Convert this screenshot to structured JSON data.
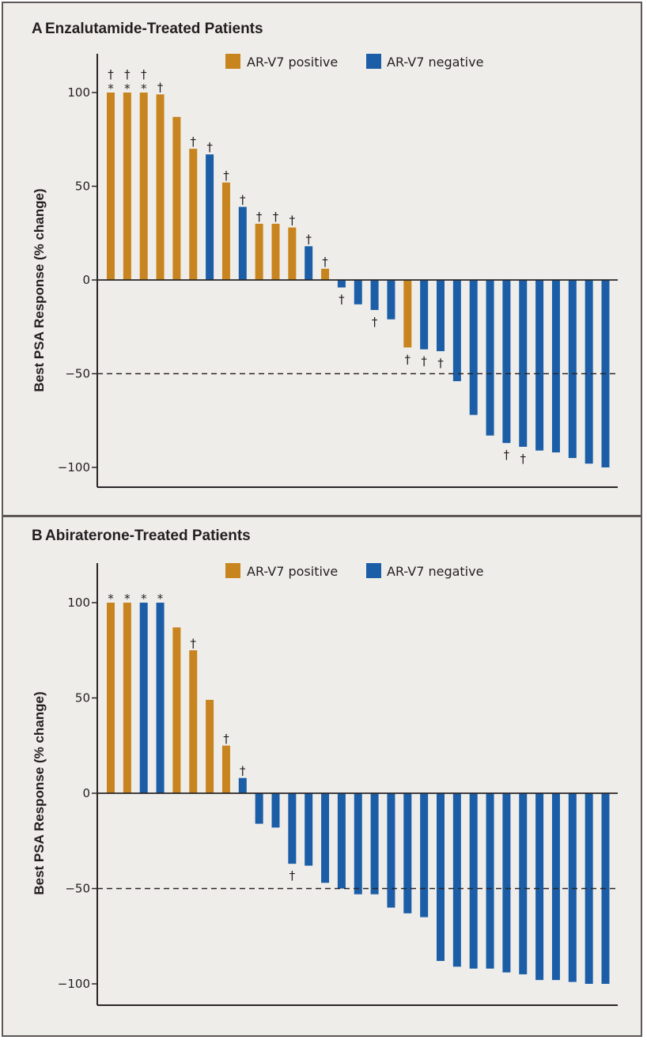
{
  "colors": {
    "positive": "#c8841f",
    "negative": "#1b5ea7",
    "axis": "#2a2627",
    "background": "#efedea"
  },
  "chart_data": [
    {
      "type": "bar",
      "panel_letter": "A",
      "title": "Enzalutamide-Treated Patients",
      "xlabel": "",
      "ylabel": "Best PSA Response (% change)",
      "ylim": [
        -110,
        120
      ],
      "yticks": [
        100,
        50,
        0,
        -50,
        -100
      ],
      "ytick_labels": [
        "100",
        "50",
        "0",
        "−50",
        "−100"
      ],
      "reference_line": {
        "value": -50,
        "style": "dashed"
      },
      "legend": {
        "placement": "top-center",
        "entries": [
          {
            "label": "AR-V7 positive",
            "status": "positive"
          },
          {
            "label": "AR-V7 negative",
            "status": "negative"
          }
        ]
      },
      "grid": false,
      "bars": [
        {
          "value": 100,
          "status": "positive",
          "marks": [
            "*",
            "†"
          ]
        },
        {
          "value": 100,
          "status": "positive",
          "marks": [
            "*",
            "†"
          ]
        },
        {
          "value": 100,
          "status": "positive",
          "marks": [
            "*",
            "†"
          ]
        },
        {
          "value": 99,
          "status": "positive",
          "marks": [
            "†"
          ]
        },
        {
          "value": 87,
          "status": "positive",
          "marks": []
        },
        {
          "value": 70,
          "status": "positive",
          "marks": [
            "†"
          ]
        },
        {
          "value": 67,
          "status": "negative",
          "marks": [
            "†"
          ]
        },
        {
          "value": 52,
          "status": "positive",
          "marks": [
            "†"
          ]
        },
        {
          "value": 39,
          "status": "negative",
          "marks": [
            "†"
          ]
        },
        {
          "value": 30,
          "status": "positive",
          "marks": [
            "†"
          ]
        },
        {
          "value": 30,
          "status": "positive",
          "marks": [
            "†"
          ]
        },
        {
          "value": 28,
          "status": "positive",
          "marks": [
            "†"
          ]
        },
        {
          "value": 18,
          "status": "negative",
          "marks": [
            "†"
          ]
        },
        {
          "value": 6,
          "status": "positive",
          "marks": [
            "†"
          ]
        },
        {
          "value": -4,
          "status": "negative",
          "marks": [
            "†"
          ]
        },
        {
          "value": -13,
          "status": "negative",
          "marks": []
        },
        {
          "value": -16,
          "status": "negative",
          "marks": [
            "†"
          ]
        },
        {
          "value": -21,
          "status": "negative",
          "marks": []
        },
        {
          "value": -36,
          "status": "positive",
          "marks": [
            "†"
          ]
        },
        {
          "value": -37,
          "status": "negative",
          "marks": [
            "†"
          ]
        },
        {
          "value": -38,
          "status": "negative",
          "marks": [
            "†"
          ]
        },
        {
          "value": -54,
          "status": "negative",
          "marks": []
        },
        {
          "value": -72,
          "status": "negative",
          "marks": []
        },
        {
          "value": -83,
          "status": "negative",
          "marks": []
        },
        {
          "value": -87,
          "status": "negative",
          "marks": [
            "†"
          ]
        },
        {
          "value": -89,
          "status": "negative",
          "marks": [
            "†"
          ]
        },
        {
          "value": -91,
          "status": "negative",
          "marks": []
        },
        {
          "value": -92,
          "status": "negative",
          "marks": []
        },
        {
          "value": -95,
          "status": "negative",
          "marks": []
        },
        {
          "value": -98,
          "status": "negative",
          "marks": []
        },
        {
          "value": -100,
          "status": "negative",
          "marks": []
        }
      ]
    },
    {
      "type": "bar",
      "panel_letter": "B",
      "title": "Abiraterone-Treated Patients",
      "xlabel": "",
      "ylabel": "Best PSA Response (% change)",
      "ylim": [
        -113,
        120
      ],
      "yticks": [
        100,
        50,
        0,
        -50,
        -100
      ],
      "ytick_labels": [
        "100",
        "50",
        "0",
        "−50",
        "−100"
      ],
      "reference_line": {
        "value": -50,
        "style": "dashed"
      },
      "legend": {
        "placement": "top-center",
        "entries": [
          {
            "label": "AR-V7 positive",
            "status": "positive"
          },
          {
            "label": "AR-V7 negative",
            "status": "negative"
          }
        ]
      },
      "grid": false,
      "bars": [
        {
          "value": 100,
          "status": "positive",
          "marks": [
            "*"
          ]
        },
        {
          "value": 100,
          "status": "positive",
          "marks": [
            "*"
          ]
        },
        {
          "value": 100,
          "status": "negative",
          "marks": [
            "*"
          ]
        },
        {
          "value": 100,
          "status": "negative",
          "marks": [
            "*"
          ]
        },
        {
          "value": 87,
          "status": "positive",
          "marks": []
        },
        {
          "value": 75,
          "status": "positive",
          "marks": [
            "†"
          ]
        },
        {
          "value": 49,
          "status": "positive",
          "marks": []
        },
        {
          "value": 25,
          "status": "positive",
          "marks": [
            "†"
          ]
        },
        {
          "value": 8,
          "status": "negative",
          "marks": [
            "†"
          ]
        },
        {
          "value": -16,
          "status": "negative",
          "marks": []
        },
        {
          "value": -18,
          "status": "negative",
          "marks": []
        },
        {
          "value": -37,
          "status": "negative",
          "marks": [
            "†"
          ]
        },
        {
          "value": -38,
          "status": "negative",
          "marks": []
        },
        {
          "value": -47,
          "status": "negative",
          "marks": []
        },
        {
          "value": -50,
          "status": "negative",
          "marks": []
        },
        {
          "value": -53,
          "status": "negative",
          "marks": []
        },
        {
          "value": -53,
          "status": "negative",
          "marks": []
        },
        {
          "value": -60,
          "status": "negative",
          "marks": []
        },
        {
          "value": -63,
          "status": "negative",
          "marks": []
        },
        {
          "value": -65,
          "status": "negative",
          "marks": []
        },
        {
          "value": -88,
          "status": "negative",
          "marks": []
        },
        {
          "value": -91,
          "status": "negative",
          "marks": []
        },
        {
          "value": -92,
          "status": "negative",
          "marks": []
        },
        {
          "value": -92,
          "status": "negative",
          "marks": []
        },
        {
          "value": -94,
          "status": "negative",
          "marks": []
        },
        {
          "value": -95,
          "status": "negative",
          "marks": []
        },
        {
          "value": -98,
          "status": "negative",
          "marks": []
        },
        {
          "value": -98,
          "status": "negative",
          "marks": []
        },
        {
          "value": -99,
          "status": "negative",
          "marks": []
        },
        {
          "value": -100,
          "status": "negative",
          "marks": []
        },
        {
          "value": -100,
          "status": "negative",
          "marks": []
        }
      ]
    }
  ]
}
